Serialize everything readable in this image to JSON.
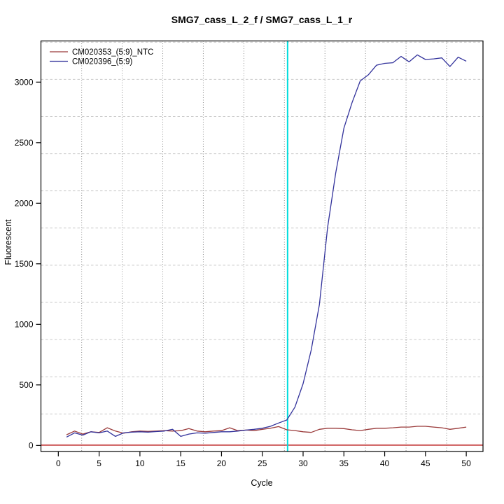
{
  "window": {
    "background": "#ffffff"
  },
  "chart_data": {
    "type": "line",
    "title": "SMG7_cass_L_2_f / SMG7_cass_L_1_r",
    "xlabel": "Cycle",
    "ylabel": "Fluorescent",
    "x": [
      1,
      2,
      3,
      4,
      5,
      6,
      7,
      8,
      9,
      10,
      11,
      12,
      13,
      14,
      15,
      16,
      17,
      18,
      19,
      20,
      21,
      22,
      23,
      24,
      25,
      26,
      27,
      28,
      29,
      30,
      31,
      32,
      33,
      34,
      35,
      36,
      37,
      38,
      39,
      40,
      41,
      42,
      43,
      44,
      45,
      46,
      47,
      48,
      49,
      50
    ],
    "series": [
      {
        "name": "CM020353_(5:9)_NTC",
        "color": "#9a3a3a",
        "values": [
          88,
          119,
          94,
          113,
          107,
          146,
          119,
          101,
          113,
          119,
          116,
          119,
          122,
          119,
          122,
          139,
          119,
          113,
          119,
          122,
          146,
          122,
          127,
          122,
          133,
          142,
          156,
          129,
          123,
          113,
          108,
          133,
          142,
          142,
          139,
          129,
          123,
          133,
          142,
          142,
          146,
          152,
          152,
          158,
          158,
          152,
          146,
          133,
          142,
          152
        ]
      },
      {
        "name": "CM020396_(5:9)",
        "color": "#32329b",
        "values": [
          69,
          104,
          85,
          113,
          104,
          119,
          75,
          104,
          110,
          113,
          110,
          115,
          119,
          133,
          75,
          94,
          104,
          101,
          107,
          113,
          113,
          119,
          127,
          133,
          142,
          158,
          185,
          210,
          316,
          510,
          788,
          1164,
          1800,
          2250,
          2620,
          2830,
          3010,
          3060,
          3140,
          3155,
          3160,
          3212,
          3168,
          3225,
          3187,
          3192,
          3200,
          3129,
          3206,
          3173
        ]
      }
    ],
    "legend": {
      "position": "top-left",
      "entries": [
        "CM020353_(5:9)_NTC",
        "CM020396_(5:9)"
      ]
    },
    "x_ticks": [
      0,
      5,
      10,
      15,
      20,
      25,
      30,
      35,
      40,
      45,
      50
    ],
    "y_ticks": [
      0,
      500,
      1000,
      1500,
      2000,
      2500,
      3000
    ],
    "xlim": [
      -2.13,
      52.05
    ],
    "ylim": [
      -50,
      3340
    ],
    "grid": {
      "on": true,
      "x_start": 2.86,
      "x_step": 4.97,
      "x_count": 10,
      "y_start": 260,
      "y_step": 307,
      "y_count": 11,
      "h_color": "#c9c9c9",
      "v_color": "#909090"
    },
    "threshold_line": {
      "y": 3,
      "color": "#cd5a5a"
    },
    "ct_marker_line": {
      "x": 28.1,
      "color": "#00dddd"
    }
  }
}
